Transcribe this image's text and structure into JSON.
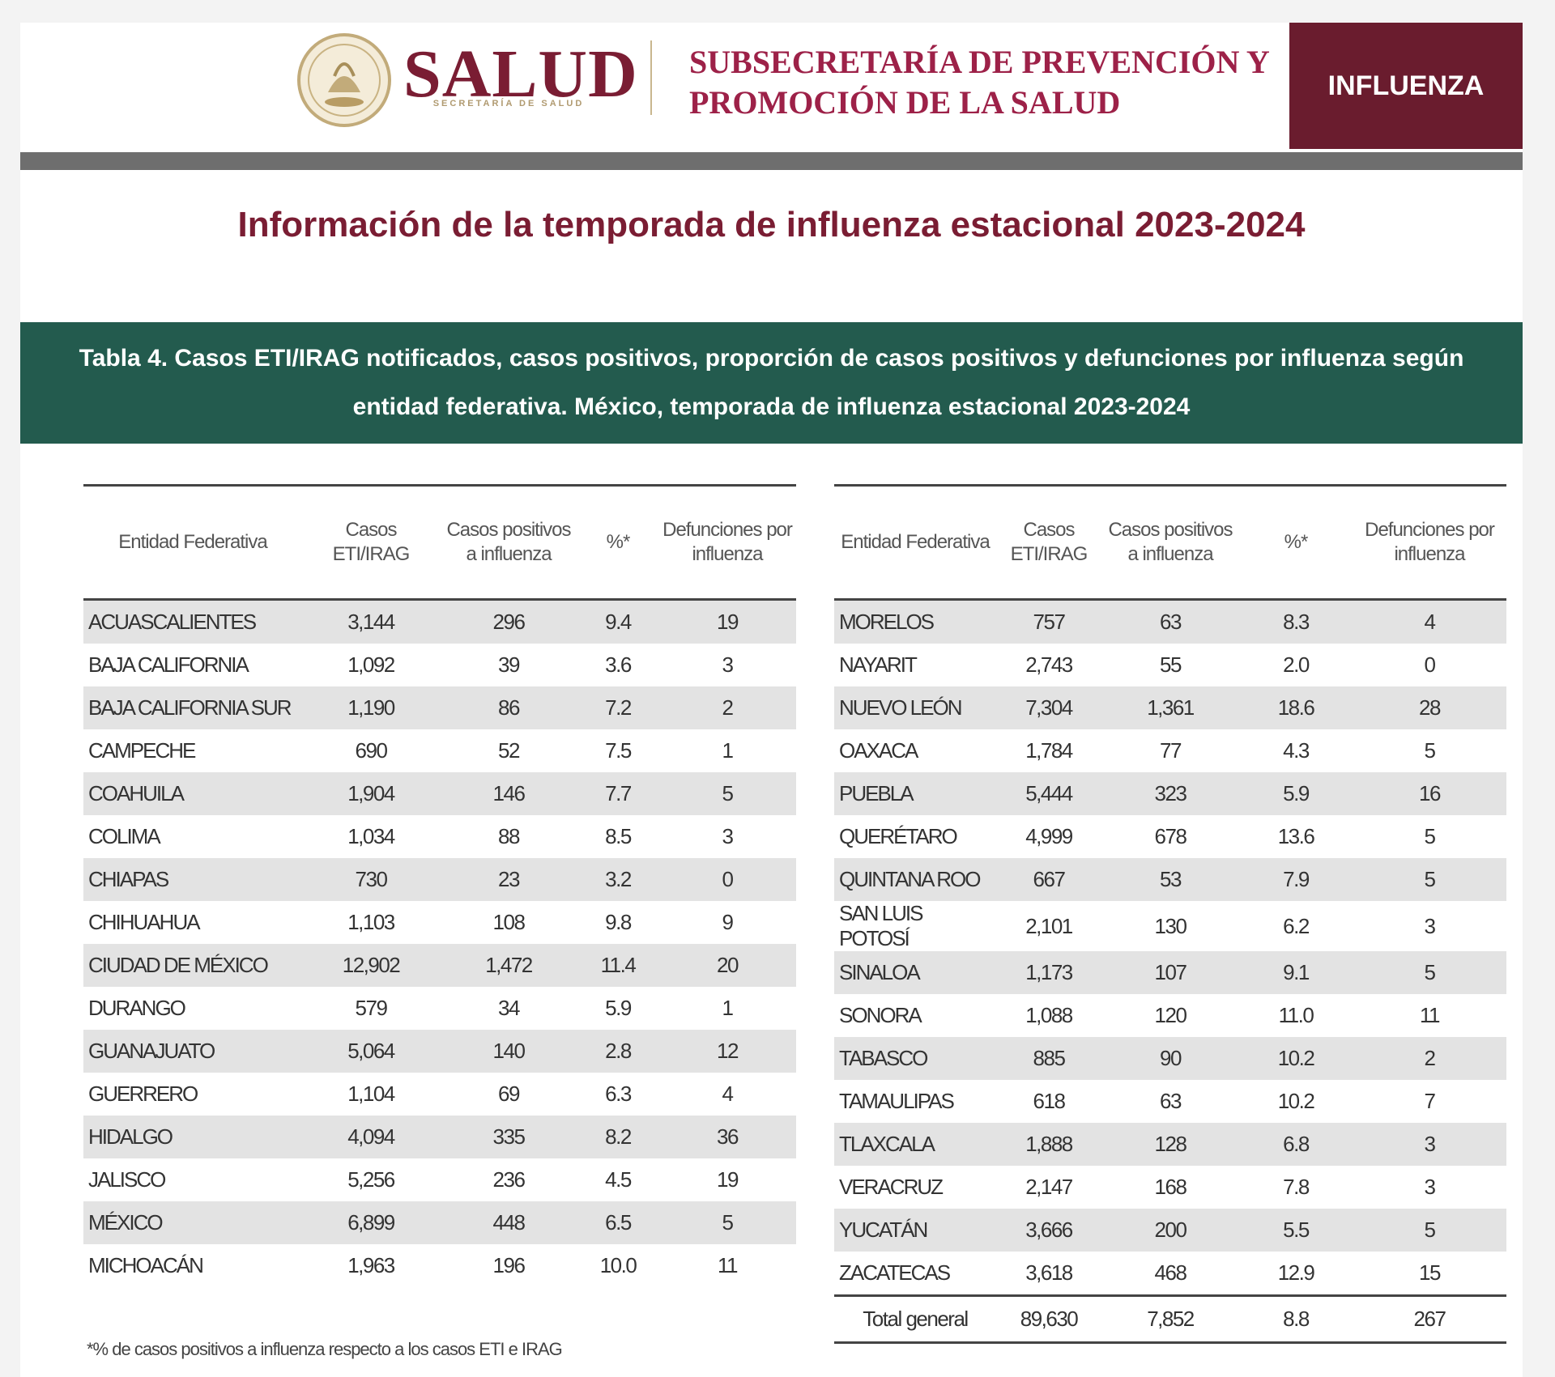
{
  "header": {
    "logo_word": "SALUD",
    "logo_subtitle": "SECRETARÍA DE SALUD",
    "subsecretaria_line1": "SUBSECRETARÍA DE PREVENCIÓN Y",
    "subsecretaria_line2": "PROMOCIÓN DE LA SALUD",
    "badge": "INFLUENZA"
  },
  "colors": {
    "brand_maroon": "#7a1d33",
    "badge_bg": "#6a1c2e",
    "caption_green": "#235b4e",
    "divider_gray": "#6e6e6e",
    "row_shade": "#e3e3e3"
  },
  "title": "Información de la temporada de influenza estacional 2023-2024",
  "table_caption": "Tabla 4. Casos ETI/IRAG notificados, casos positivos, proporción de casos positivos  y defunciones por influenza según entidad federativa. México, temporada de influenza estacional 2023-2024",
  "left_table": {
    "headers": [
      "Entidad Federativa",
      "Casos ETI/IRAG",
      "Casos positivos a influenza",
      "%*",
      "Defunciones por influenza"
    ],
    "rows": [
      [
        "ACUASCALIENTES",
        "3,144",
        "296",
        "9.4",
        "19"
      ],
      [
        "BAJA CALIFORNIA",
        "1,092",
        "39",
        "3.6",
        "3"
      ],
      [
        "BAJA CALIFORNIA SUR",
        "1,190",
        "86",
        "7.2",
        "2"
      ],
      [
        "CAMPECHE",
        "690",
        "52",
        "7.5",
        "1"
      ],
      [
        "COAHUILA",
        "1,904",
        "146",
        "7.7",
        "5"
      ],
      [
        "COLIMA",
        "1,034",
        "88",
        "8.5",
        "3"
      ],
      [
        "CHIAPAS",
        "730",
        "23",
        "3.2",
        "0"
      ],
      [
        "CHIHUAHUA",
        "1,103",
        "108",
        "9.8",
        "9"
      ],
      [
        "CIUDAD DE MÉXICO",
        "12,902",
        "1,472",
        "11.4",
        "20"
      ],
      [
        "DURANGO",
        "579",
        "34",
        "5.9",
        "1"
      ],
      [
        "GUANAJUATO",
        "5,064",
        "140",
        "2.8",
        "12"
      ],
      [
        "GUERRERO",
        "1,104",
        "69",
        "6.3",
        "4"
      ],
      [
        "HIDALGO",
        "4,094",
        "335",
        "8.2",
        "36"
      ],
      [
        "JALISCO",
        "5,256",
        "236",
        "4.5",
        "19"
      ],
      [
        "MÉXICO",
        "6,899",
        "448",
        "6.5",
        "5"
      ],
      [
        "MICHOACÁN",
        "1,963",
        "196",
        "10.0",
        "11"
      ]
    ]
  },
  "right_table": {
    "headers": [
      "Entidad Federativa",
      "Casos ETI/IRAG",
      "Casos positivos a influenza",
      "%*",
      "Defunciones por influenza"
    ],
    "rows": [
      [
        "MORELOS",
        "757",
        "63",
        "8.3",
        "4"
      ],
      [
        "NAYARIT",
        "2,743",
        "55",
        "2.0",
        "0"
      ],
      [
        "NUEVO LEÓN",
        "7,304",
        "1,361",
        "18.6",
        "28"
      ],
      [
        "OAXACA",
        "1,784",
        "77",
        "4.3",
        "5"
      ],
      [
        "PUEBLA",
        "5,444",
        "323",
        "5.9",
        "16"
      ],
      [
        "QUERÉTARO",
        "4,999",
        "678",
        "13.6",
        "5"
      ],
      [
        "QUINTANA ROO",
        "667",
        "53",
        "7.9",
        "5"
      ],
      [
        "SAN LUIS POTOSÍ",
        "2,101",
        "130",
        "6.2",
        "3"
      ],
      [
        "SINALOA",
        "1,173",
        "107",
        "9.1",
        "5"
      ],
      [
        "SONORA",
        "1,088",
        "120",
        "11.0",
        "11"
      ],
      [
        "TABASCO",
        "885",
        "90",
        "10.2",
        "2"
      ],
      [
        "TAMAULIPAS",
        "618",
        "63",
        "10.2",
        "7"
      ],
      [
        "TLAXCALA",
        "1,888",
        "128",
        "6.8",
        "3"
      ],
      [
        "VERACRUZ",
        "2,147",
        "168",
        "7.8",
        "3"
      ],
      [
        "YUCATÁN",
        "3,666",
        "200",
        "5.5",
        "5"
      ],
      [
        "ZACATECAS",
        "3,618",
        "468",
        "12.9",
        "15"
      ]
    ],
    "total": [
      "Total general",
      "89,630",
      "7,852",
      "8.8",
      "267"
    ]
  },
  "footnote": "*% de casos positivos a influenza respecto a los casos ETI e IRAG"
}
